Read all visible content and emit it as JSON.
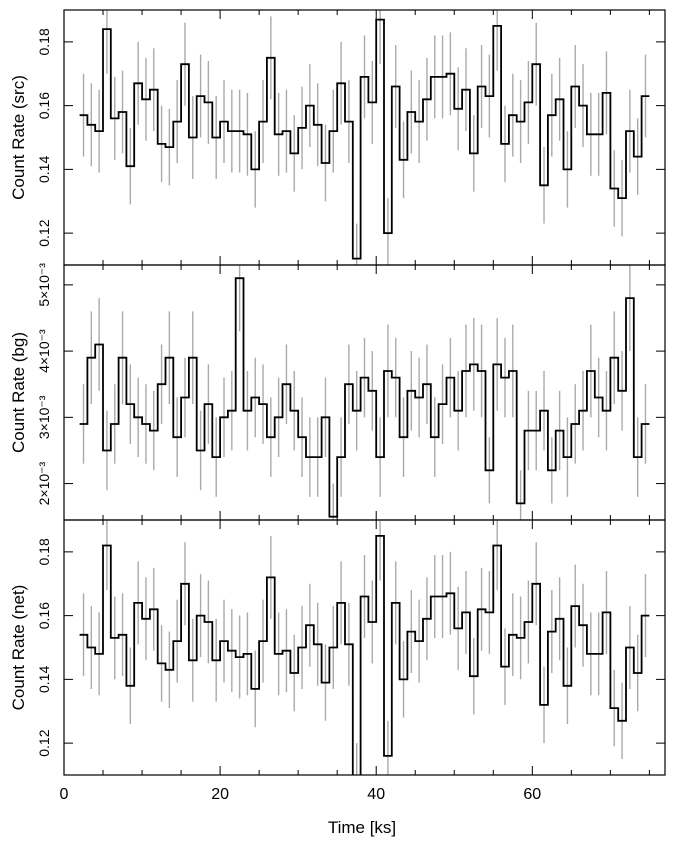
{
  "figure": {
    "xlabel": "Time [ks]",
    "xlim": [
      0,
      77
    ],
    "xticks": [
      "0",
      "20",
      "40",
      "60"
    ],
    "bin_width": 1.0,
    "colors": {
      "step": "#000000",
      "errorbar": "#aaaaaa",
      "axes": "#000000"
    }
  },
  "chart_data": [
    {
      "type": "line",
      "panel": "src",
      "ylabel": "Count Rate (src)",
      "ylim": [
        0.11,
        0.19
      ],
      "yticks": [
        "0.12",
        "0.14",
        "0.16",
        "0.18"
      ],
      "x_start": [
        2.0,
        3.0,
        4.0,
        5.0,
        6.0,
        7.0,
        8.0,
        9.0,
        10.0,
        11.0,
        12.0,
        13.0,
        14.0,
        15.0,
        16.0,
        17.0,
        18.0,
        19.0,
        20.0,
        21.0,
        22.0,
        23.0,
        24.0,
        25.0,
        26.0,
        27.0,
        28.0,
        29.0,
        30.0,
        31.0,
        32.0,
        33.0,
        34.0,
        35.0,
        36.0,
        37.0,
        38.0,
        39.0,
        40.0,
        41.0,
        42.0,
        43.0,
        44.0,
        45.0,
        46.0,
        47.0,
        48.0,
        49.0,
        50.0,
        51.0,
        52.0,
        53.0,
        54.0,
        55.0,
        56.0,
        57.0,
        58.0,
        59.0,
        60.0,
        61.0,
        62.0,
        63.0,
        64.0,
        65.0,
        66.0,
        67.0,
        68.0,
        69.0,
        70.0,
        71.0,
        72.0,
        73.0,
        74.0
      ],
      "values": [
        0.157,
        0.154,
        0.152,
        0.184,
        0.156,
        0.158,
        0.141,
        0.167,
        0.162,
        0.165,
        0.148,
        0.147,
        0.155,
        0.173,
        0.15,
        0.163,
        0.161,
        0.15,
        0.155,
        0.152,
        0.152,
        0.151,
        0.14,
        0.155,
        0.175,
        0.151,
        0.152,
        0.145,
        0.153,
        0.16,
        0.154,
        0.142,
        0.152,
        0.167,
        0.155,
        0.112,
        0.169,
        0.161,
        0.187,
        0.12,
        0.166,
        0.143,
        0.158,
        0.155,
        0.162,
        0.169,
        0.169,
        0.17,
        0.159,
        0.165,
        0.145,
        0.166,
        0.163,
        0.185,
        0.148,
        0.157,
        0.155,
        0.161,
        0.173,
        0.135,
        0.157,
        0.162,
        0.14,
        0.166,
        0.16,
        0.151,
        0.151,
        0.164,
        0.134,
        0.131,
        0.152,
        0.144,
        0.163
      ],
      "errors": [
        0.013,
        0.013,
        0.013,
        0.014,
        0.013,
        0.013,
        0.012,
        0.013,
        0.013,
        0.013,
        0.012,
        0.012,
        0.013,
        0.013,
        0.013,
        0.013,
        0.013,
        0.013,
        0.013,
        0.013,
        0.013,
        0.013,
        0.012,
        0.013,
        0.013,
        0.013,
        0.013,
        0.012,
        0.013,
        0.013,
        0.013,
        0.012,
        0.013,
        0.013,
        0.013,
        0.011,
        0.013,
        0.013,
        0.014,
        0.011,
        0.013,
        0.012,
        0.013,
        0.013,
        0.013,
        0.013,
        0.013,
        0.013,
        0.013,
        0.013,
        0.012,
        0.013,
        0.013,
        0.014,
        0.012,
        0.013,
        0.013,
        0.013,
        0.013,
        0.012,
        0.013,
        0.013,
        0.012,
        0.013,
        0.013,
        0.013,
        0.013,
        0.013,
        0.012,
        0.012,
        0.013,
        0.012,
        0.013
      ]
    },
    {
      "type": "line",
      "panel": "bg",
      "ylabel": "Count Rate (bg)",
      "ylim": [
        0.00145,
        0.0053
      ],
      "yticks": [
        "2×10⁻³",
        "3×10⁻³",
        "4×10⁻³",
        "5×10⁻³"
      ],
      "ytick_values": [
        0.002,
        0.003,
        0.004,
        0.005
      ],
      "x_start": [
        2.0,
        3.0,
        4.0,
        5.0,
        6.0,
        7.0,
        8.0,
        9.0,
        10.0,
        11.0,
        12.0,
        13.0,
        14.0,
        15.0,
        16.0,
        17.0,
        18.0,
        19.0,
        20.0,
        21.0,
        22.0,
        23.0,
        24.0,
        25.0,
        26.0,
        27.0,
        28.0,
        29.0,
        30.0,
        31.0,
        32.0,
        33.0,
        34.0,
        35.0,
        36.0,
        37.0,
        38.0,
        39.0,
        40.0,
        41.0,
        42.0,
        43.0,
        44.0,
        45.0,
        46.0,
        47.0,
        48.0,
        49.0,
        50.0,
        51.0,
        52.0,
        53.0,
        54.0,
        55.0,
        56.0,
        57.0,
        58.0,
        59.0,
        60.0,
        61.0,
        62.0,
        63.0,
        64.0,
        65.0,
        66.0,
        67.0,
        68.0,
        69.0,
        70.0,
        71.0,
        72.0,
        73.0,
        74.0
      ],
      "values": [
        0.0029,
        0.0039,
        0.0041,
        0.0025,
        0.0029,
        0.0039,
        0.0032,
        0.003,
        0.0029,
        0.0028,
        0.0035,
        0.0039,
        0.0027,
        0.0033,
        0.0039,
        0.0025,
        0.0032,
        0.0024,
        0.003,
        0.0031,
        0.0051,
        0.0031,
        0.0033,
        0.0032,
        0.0027,
        0.003,
        0.0035,
        0.0031,
        0.0027,
        0.0024,
        0.0024,
        0.003,
        0.0015,
        0.0024,
        0.0035,
        0.0031,
        0.0036,
        0.0034,
        0.0024,
        0.0037,
        0.0036,
        0.0027,
        0.0034,
        0.0033,
        0.0035,
        0.0027,
        0.0032,
        0.0036,
        0.0031,
        0.0037,
        0.0038,
        0.0037,
        0.0022,
        0.0038,
        0.0036,
        0.0037,
        0.0017,
        0.0028,
        0.0028,
        0.0031,
        0.0022,
        0.0028,
        0.0024,
        0.0029,
        0.0031,
        0.0037,
        0.0033,
        0.0031,
        0.0039,
        0.0034,
        0.0048,
        0.0024,
        0.0029
      ],
      "errors": [
        0.0006,
        0.0007,
        0.0007,
        0.0006,
        0.0006,
        0.0007,
        0.0006,
        0.0006,
        0.0006,
        0.0006,
        0.0006,
        0.0007,
        0.0006,
        0.0006,
        0.0007,
        0.0006,
        0.0006,
        0.0006,
        0.0006,
        0.0006,
        0.0008,
        0.0006,
        0.0006,
        0.0006,
        0.0006,
        0.0006,
        0.0006,
        0.0006,
        0.0006,
        0.0006,
        0.0006,
        0.0006,
        0.0005,
        0.0006,
        0.0006,
        0.0006,
        0.0006,
        0.0006,
        0.0006,
        0.0007,
        0.0006,
        0.0006,
        0.0006,
        0.0006,
        0.0006,
        0.0006,
        0.0006,
        0.0006,
        0.0006,
        0.0007,
        0.0007,
        0.0007,
        0.0005,
        0.0007,
        0.0006,
        0.0007,
        0.0005,
        0.0006,
        0.0006,
        0.0006,
        0.0005,
        0.0006,
        0.0006,
        0.0006,
        0.0006,
        0.0007,
        0.0006,
        0.0006,
        0.0007,
        0.0006,
        0.0008,
        0.0006,
        0.0006
      ]
    },
    {
      "type": "line",
      "panel": "net",
      "ylabel": "Count Rate (net)",
      "ylim": [
        0.11,
        0.19
      ],
      "yticks": [
        "0.12",
        "0.14",
        "0.16",
        "0.18"
      ],
      "x_start": [
        2.0,
        3.0,
        4.0,
        5.0,
        6.0,
        7.0,
        8.0,
        9.0,
        10.0,
        11.0,
        12.0,
        13.0,
        14.0,
        15.0,
        16.0,
        17.0,
        18.0,
        19.0,
        20.0,
        21.0,
        22.0,
        23.0,
        24.0,
        25.0,
        26.0,
        27.0,
        28.0,
        29.0,
        30.0,
        31.0,
        32.0,
        33.0,
        34.0,
        35.0,
        36.0,
        37.0,
        38.0,
        39.0,
        40.0,
        41.0,
        42.0,
        43.0,
        44.0,
        45.0,
        46.0,
        47.0,
        48.0,
        49.0,
        50.0,
        51.0,
        52.0,
        53.0,
        54.0,
        55.0,
        56.0,
        57.0,
        58.0,
        59.0,
        60.0,
        61.0,
        62.0,
        63.0,
        64.0,
        65.0,
        66.0,
        67.0,
        68.0,
        69.0,
        70.0,
        71.0,
        72.0,
        73.0,
        74.0
      ],
      "values": [
        0.154,
        0.15,
        0.148,
        0.182,
        0.153,
        0.154,
        0.138,
        0.164,
        0.159,
        0.162,
        0.145,
        0.143,
        0.152,
        0.17,
        0.146,
        0.16,
        0.158,
        0.146,
        0.152,
        0.149,
        0.147,
        0.148,
        0.137,
        0.152,
        0.172,
        0.148,
        0.149,
        0.142,
        0.15,
        0.157,
        0.151,
        0.139,
        0.15,
        0.164,
        0.151,
        0.109,
        0.166,
        0.158,
        0.185,
        0.116,
        0.164,
        0.14,
        0.155,
        0.152,
        0.159,
        0.166,
        0.166,
        0.167,
        0.156,
        0.161,
        0.141,
        0.162,
        0.161,
        0.182,
        0.144,
        0.154,
        0.153,
        0.158,
        0.17,
        0.132,
        0.155,
        0.159,
        0.138,
        0.163,
        0.157,
        0.148,
        0.148,
        0.161,
        0.131,
        0.127,
        0.15,
        0.142,
        0.16
      ],
      "errors": [
        0.013,
        0.013,
        0.013,
        0.014,
        0.013,
        0.013,
        0.012,
        0.013,
        0.013,
        0.013,
        0.012,
        0.012,
        0.013,
        0.013,
        0.013,
        0.013,
        0.013,
        0.013,
        0.013,
        0.013,
        0.013,
        0.013,
        0.012,
        0.013,
        0.013,
        0.013,
        0.013,
        0.012,
        0.013,
        0.013,
        0.013,
        0.012,
        0.013,
        0.013,
        0.013,
        0.011,
        0.013,
        0.013,
        0.014,
        0.011,
        0.013,
        0.012,
        0.013,
        0.013,
        0.013,
        0.013,
        0.013,
        0.013,
        0.013,
        0.013,
        0.012,
        0.013,
        0.013,
        0.014,
        0.012,
        0.013,
        0.013,
        0.013,
        0.013,
        0.012,
        0.013,
        0.013,
        0.012,
        0.013,
        0.013,
        0.013,
        0.013,
        0.013,
        0.012,
        0.012,
        0.013,
        0.012,
        0.013
      ]
    }
  ]
}
